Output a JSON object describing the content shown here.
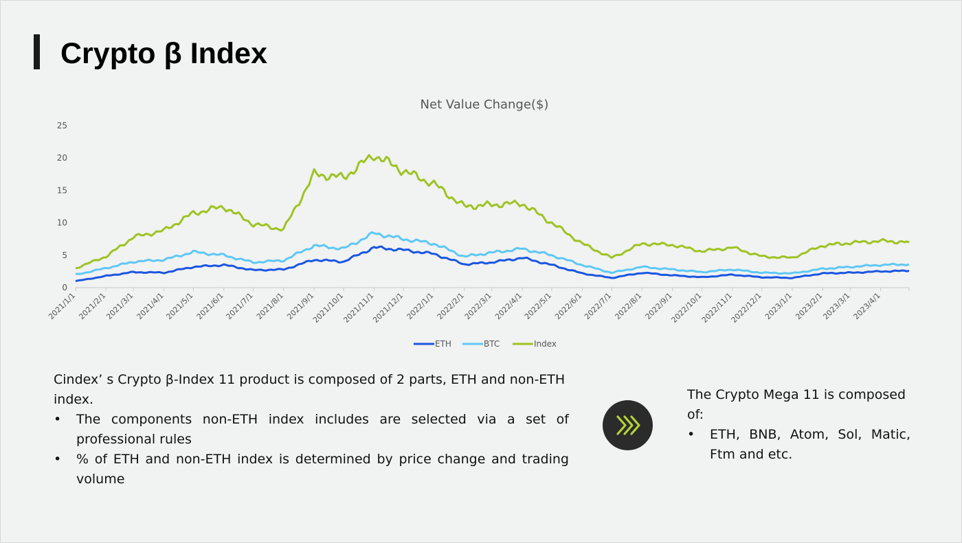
{
  "page": {
    "title": "Crypto β Index"
  },
  "description": {
    "intro": "Cindex’ s Crypto β-Index 11 product is composed of 2 parts, ETH and non-ETH index.",
    "bullets": [
      "The components non-ETH index includes are selected via a set of professional rules",
      "% of ETH and non-ETH index is determined by price change and trading volume"
    ]
  },
  "side": {
    "heading": "The Crypto Mega 11 is composed of:",
    "bullets": [
      "ETH, BNB, Atom, Sol, Matic, Ftm and etc."
    ]
  },
  "arrow_button": {
    "icon": "triple-chevron-right-icon",
    "color": "#b5d334",
    "background": "#2b2b2b"
  },
  "chart_data": {
    "type": "line",
    "title": "Net Value Change($)",
    "xlabel": "",
    "ylabel": "",
    "ylim": [
      0,
      25
    ],
    "yticks": [
      0,
      5,
      10,
      15,
      20,
      25
    ],
    "grid": false,
    "legend": "bottom",
    "x": [
      "2021/1/1",
      "2021/2/1",
      "2021/3/1",
      "2021/4/1",
      "2021/5/1",
      "2021/6/1",
      "2021/7/1",
      "2021/8/1",
      "2021/9/1",
      "2021/10/1",
      "2021/11/1",
      "2021/12/1",
      "2022/1/1",
      "2022/2/1",
      "2022/3/1",
      "2022/4/1",
      "2022/5/1",
      "2022/6/1",
      "2022/7/1",
      "2022/8/1",
      "2022/9/1",
      "2022/10/1",
      "2022/11/1",
      "2022/12/1",
      "2023/1/1",
      "2023/2/1",
      "2023/3/1",
      "2023/4/1",
      "2023/4/30"
    ],
    "xtick_labels": [
      "2021/1/1",
      "2021/2/1",
      "2021/3/1",
      "2021/4/1",
      "2021/5/1",
      "2021/6/1",
      "2021/7/1",
      "2021/8/1",
      "2021/9/1",
      "2021/10/1",
      "2021/11/1",
      "2021/12/1",
      "2022/1/1",
      "2022/2/1",
      "2022/3/1",
      "2022/4/1",
      "2022/5/1",
      "2022/6/1",
      "2022/7/1",
      "2022/8/1",
      "2022/9/1",
      "2022/10/1",
      "2022/11/1",
      "2022/12/1",
      "2023/1/1",
      "2023/2/1",
      "2023/3/1",
      "2023/4/1"
    ],
    "series": [
      {
        "name": "ETH",
        "color": "#1a56e0",
        "values": [
          1.0,
          1.8,
          2.4,
          2.3,
          3.2,
          3.5,
          2.7,
          2.8,
          4.3,
          4.0,
          6.2,
          5.8,
          5.2,
          3.6,
          3.9,
          4.6,
          3.5,
          2.2,
          1.5,
          2.3,
          1.9,
          1.6,
          2.0,
          1.6,
          1.5,
          2.2,
          2.3,
          2.5,
          2.6
        ]
      },
      {
        "name": "BTC",
        "color": "#5ec8f5",
        "values": [
          2.0,
          3.0,
          4.0,
          4.3,
          5.5,
          5.0,
          3.9,
          4.2,
          6.5,
          6.0,
          8.4,
          7.5,
          6.8,
          4.8,
          5.4,
          6.0,
          5.0,
          3.5,
          2.3,
          3.2,
          2.8,
          2.4,
          2.8,
          2.3,
          2.2,
          2.9,
          3.2,
          3.5,
          3.6
        ]
      },
      {
        "name": "Index",
        "color": "#9ec322",
        "values": [
          3.0,
          4.8,
          7.8,
          8.8,
          11.5,
          12.5,
          9.8,
          9.0,
          17.5,
          17.0,
          20.5,
          18.0,
          16.0,
          12.5,
          12.8,
          13.0,
          10.0,
          6.8,
          4.6,
          6.8,
          6.6,
          5.6,
          6.2,
          4.8,
          4.6,
          6.5,
          6.9,
          7.2,
          7.0
        ]
      }
    ]
  }
}
